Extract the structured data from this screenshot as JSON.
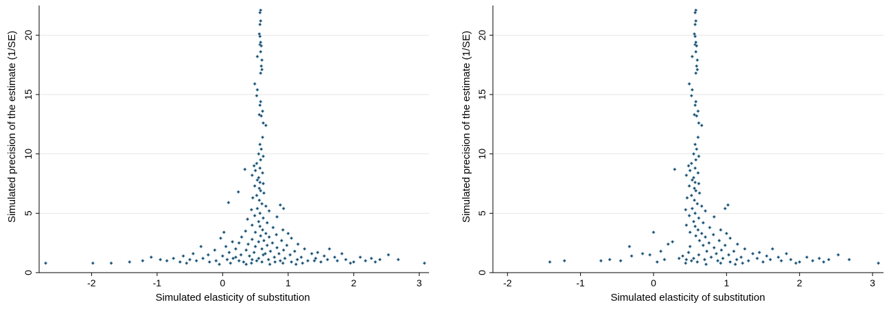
{
  "chart_data": [
    {
      "type": "scatter",
      "title": "",
      "xlabel": "Simulated elasticity of substitution",
      "ylabel": "Simulated precision of the estimate (1/SE)",
      "xlim": [
        -2.8,
        3.15
      ],
      "ylim": [
        0,
        22.5
      ],
      "xticks": [
        -2,
        -1,
        0,
        1,
        2,
        3
      ],
      "yticks": [
        0,
        5,
        10,
        15,
        20
      ],
      "grid": true,
      "legend": "none",
      "marker_color": "#1e4e6e",
      "points": [
        [
          0.58,
          22.1
        ],
        [
          0.57,
          21.9
        ],
        [
          0.58,
          21.2
        ],
        [
          0.57,
          20.9
        ],
        [
          0.56,
          20.1
        ],
        [
          0.57,
          19.9
        ],
        [
          0.58,
          19.4
        ],
        [
          0.57,
          19.2
        ],
        [
          0.59,
          19.1
        ],
        [
          0.58,
          18.6
        ],
        [
          0.53,
          18.2
        ],
        [
          0.6,
          17.9
        ],
        [
          0.59,
          17.4
        ],
        [
          0.6,
          17.1
        ],
        [
          0.58,
          16.8
        ],
        [
          0.49,
          15.9
        ],
        [
          0.53,
          15.4
        ],
        [
          0.52,
          14.9
        ],
        [
          0.58,
          14.4
        ],
        [
          0.57,
          14.1
        ],
        [
          0.61,
          13.6
        ],
        [
          0.56,
          13.3
        ],
        [
          0.59,
          13.2
        ],
        [
          0.62,
          12.6
        ],
        [
          0.66,
          12.4
        ],
        [
          0.61,
          11.4
        ],
        [
          0.57,
          10.8
        ],
        [
          0.59,
          10.4
        ],
        [
          0.55,
          10.0
        ],
        [
          0.62,
          9.8
        ],
        [
          0.58,
          9.5
        ],
        [
          0.52,
          9.2
        ],
        [
          0.48,
          9.0
        ],
        [
          0.57,
          8.8
        ],
        [
          0.5,
          8.6
        ],
        [
          0.34,
          8.7
        ],
        [
          0.61,
          8.4
        ],
        [
          0.45,
          8.2
        ],
        [
          0.55,
          8.0
        ],
        [
          0.53,
          7.8
        ],
        [
          0.57,
          7.6
        ],
        [
          0.62,
          7.5
        ],
        [
          0.49,
          7.3
        ],
        [
          0.56,
          7.1
        ],
        [
          0.58,
          6.9
        ],
        [
          0.63,
          6.7
        ],
        [
          0.24,
          6.8
        ],
        [
          0.52,
          6.5
        ],
        [
          0.46,
          6.3
        ],
        [
          0.56,
          6.1
        ],
        [
          0.09,
          5.9
        ],
        [
          0.6,
          5.8
        ],
        [
          0.66,
          5.6
        ],
        [
          0.53,
          5.4
        ],
        [
          0.44,
          5.3
        ],
        [
          0.71,
          5.2
        ],
        [
          0.57,
          5.0
        ],
        [
          0.88,
          5.7
        ],
        [
          0.93,
          5.4
        ],
        [
          0.49,
          4.8
        ],
        [
          0.62,
          4.6
        ],
        [
          0.83,
          4.7
        ],
        [
          0.38,
          4.5
        ],
        [
          0.55,
          4.3
        ],
        [
          0.68,
          4.2
        ],
        [
          0.45,
          4.0
        ],
        [
          0.57,
          3.9
        ],
        [
          0.77,
          3.8
        ],
        [
          0.61,
          3.6
        ],
        [
          0.92,
          3.6
        ],
        [
          0.35,
          3.5
        ],
        [
          0.5,
          3.4
        ],
        [
          0.66,
          3.3
        ],
        [
          1.0,
          3.3
        ],
        [
          0.02,
          3.4
        ],
        [
          0.82,
          3.2
        ],
        [
          0.58,
          3.1
        ],
        [
          0.29,
          3.0
        ],
        [
          0.71,
          3.0
        ],
        [
          1.05,
          2.9
        ],
        [
          -0.03,
          2.9
        ],
        [
          0.45,
          2.8
        ],
        [
          0.63,
          2.7
        ],
        [
          0.9,
          2.7
        ],
        [
          0.15,
          2.6
        ],
        [
          0.55,
          2.6
        ],
        [
          0.76,
          2.5
        ],
        [
          1.15,
          2.4
        ],
        [
          0.25,
          2.5
        ],
        [
          0.39,
          2.4
        ],
        [
          0.68,
          2.3
        ],
        [
          0.98,
          2.3
        ],
        [
          -0.33,
          2.2
        ],
        [
          0.05,
          2.2
        ],
        [
          0.5,
          2.2
        ],
        [
          0.83,
          2.1
        ],
        [
          1.25,
          2.0
        ],
        [
          0.2,
          2.0
        ],
        [
          0.6,
          2.0
        ],
        [
          0.93,
          1.9
        ],
        [
          1.63,
          2.0
        ],
        [
          -0.12,
          1.9
        ],
        [
          0.36,
          1.9
        ],
        [
          0.73,
          1.8
        ],
        [
          1.1,
          1.8
        ],
        [
          1.45,
          1.7
        ],
        [
          -0.45,
          1.6
        ],
        [
          0.1,
          1.7
        ],
        [
          0.48,
          1.7
        ],
        [
          0.86,
          1.6
        ],
        [
          1.36,
          1.6
        ],
        [
          1.82,
          1.6
        ],
        [
          -0.22,
          1.5
        ],
        [
          0.28,
          1.5
        ],
        [
          0.62,
          1.5
        ],
        [
          1.03,
          1.5
        ],
        [
          1.55,
          1.4
        ],
        [
          -0.6,
          1.4
        ],
        [
          0.0,
          1.4
        ],
        [
          0.41,
          1.4
        ],
        [
          0.79,
          1.3
        ],
        [
          1.2,
          1.3
        ],
        [
          1.71,
          1.3
        ],
        [
          2.1,
          1.3
        ],
        [
          -0.75,
          1.2
        ],
        [
          -0.3,
          1.2
        ],
        [
          0.16,
          1.2
        ],
        [
          0.55,
          1.2
        ],
        [
          0.95,
          1.2
        ],
        [
          1.42,
          1.2
        ],
        [
          2.27,
          1.2
        ],
        [
          2.53,
          1.5
        ],
        [
          -1.09,
          1.3
        ],
        [
          -0.95,
          1.1
        ],
        [
          -0.5,
          1.1
        ],
        [
          0.07,
          1.1
        ],
        [
          0.45,
          1.1
        ],
        [
          0.7,
          1.1
        ],
        [
          1.14,
          1.1
        ],
        [
          1.6,
          1.1
        ],
        [
          1.88,
          1.1
        ],
        [
          2.4,
          1.1
        ],
        [
          2.68,
          1.1
        ],
        [
          -0.85,
          1.0
        ],
        [
          -0.4,
          1.0
        ],
        [
          -0.1,
          1.0
        ],
        [
          0.25,
          1.0
        ],
        [
          0.52,
          1.0
        ],
        [
          0.88,
          1.0
        ],
        [
          1.3,
          1.0
        ],
        [
          1.75,
          1.0
        ],
        [
          2.18,
          1.0
        ],
        [
          -1.42,
          0.9
        ],
        [
          -1.22,
          1.0
        ],
        [
          -0.65,
          0.9
        ],
        [
          -0.2,
          0.9
        ],
        [
          0.32,
          0.9
        ],
        [
          0.6,
          0.9
        ],
        [
          1.05,
          0.9
        ],
        [
          1.5,
          0.9
        ],
        [
          2.0,
          0.9
        ],
        [
          2.33,
          0.9
        ],
        [
          -2.7,
          0.8
        ],
        [
          -1.98,
          0.8
        ],
        [
          -1.7,
          0.8
        ],
        [
          -0.55,
          0.8
        ],
        [
          0.12,
          0.8
        ],
        [
          0.44,
          0.8
        ],
        [
          0.92,
          0.8
        ],
        [
          1.22,
          0.8
        ],
        [
          1.95,
          0.8
        ],
        [
          3.08,
          0.8
        ],
        [
          0.36,
          0.7
        ],
        [
          0.72,
          0.7
        ],
        [
          1.12,
          0.7
        ],
        [
          -0.05,
          0.7
        ],
        [
          1.4,
          1.0
        ],
        [
          0.8,
          0.9
        ],
        [
          0.2,
          1.3
        ],
        [
          0.65,
          1.6
        ]
      ]
    },
    {
      "type": "scatter",
      "title": "",
      "xlabel": "Simulated elasticity of substitution",
      "ylabel": "Simulated precision of the estimate (1/SE)",
      "xlim": [
        -2.2,
        3.15
      ],
      "ylim": [
        0,
        22.5
      ],
      "xticks": [
        -2,
        -1,
        0,
        1,
        2,
        3
      ],
      "yticks": [
        0,
        5,
        10,
        15,
        20
      ],
      "grid": true,
      "legend": "none",
      "marker_color": "#1e4e6e",
      "points": [
        [
          0.58,
          22.1
        ],
        [
          0.57,
          21.9
        ],
        [
          0.58,
          21.2
        ],
        [
          0.57,
          20.9
        ],
        [
          0.56,
          20.1
        ],
        [
          0.57,
          19.9
        ],
        [
          0.58,
          19.4
        ],
        [
          0.57,
          19.2
        ],
        [
          0.59,
          19.1
        ],
        [
          0.58,
          18.6
        ],
        [
          0.53,
          18.2
        ],
        [
          0.6,
          17.9
        ],
        [
          0.59,
          17.4
        ],
        [
          0.6,
          17.1
        ],
        [
          0.58,
          16.8
        ],
        [
          0.49,
          15.9
        ],
        [
          0.53,
          15.4
        ],
        [
          0.52,
          14.9
        ],
        [
          0.58,
          14.4
        ],
        [
          0.57,
          14.1
        ],
        [
          0.61,
          13.6
        ],
        [
          0.56,
          13.3
        ],
        [
          0.59,
          13.2
        ],
        [
          0.62,
          12.6
        ],
        [
          0.66,
          12.4
        ],
        [
          0.61,
          11.4
        ],
        [
          0.57,
          10.8
        ],
        [
          0.59,
          10.4
        ],
        [
          0.55,
          10.0
        ],
        [
          0.62,
          9.8
        ],
        [
          0.58,
          9.5
        ],
        [
          0.52,
          9.2
        ],
        [
          0.48,
          9.0
        ],
        [
          0.57,
          8.8
        ],
        [
          0.5,
          8.6
        ],
        [
          0.29,
          8.7
        ],
        [
          0.61,
          8.4
        ],
        [
          0.45,
          8.2
        ],
        [
          0.55,
          8.0
        ],
        [
          0.53,
          7.8
        ],
        [
          0.57,
          7.6
        ],
        [
          0.62,
          7.5
        ],
        [
          0.49,
          7.3
        ],
        [
          0.56,
          7.1
        ],
        [
          0.58,
          6.9
        ],
        [
          0.63,
          6.7
        ],
        [
          0.52,
          6.5
        ],
        [
          0.46,
          6.3
        ],
        [
          0.56,
          6.1
        ],
        [
          0.6,
          5.8
        ],
        [
          0.66,
          5.6
        ],
        [
          0.53,
          5.4
        ],
        [
          0.44,
          5.3
        ],
        [
          0.71,
          5.2
        ],
        [
          0.57,
          5.0
        ],
        [
          1.02,
          5.7
        ],
        [
          0.98,
          5.4
        ],
        [
          0.49,
          4.8
        ],
        [
          0.62,
          4.6
        ],
        [
          0.83,
          4.7
        ],
        [
          0.55,
          4.3
        ],
        [
          0.68,
          4.2
        ],
        [
          0.45,
          4.0
        ],
        [
          0.57,
          3.9
        ],
        [
          0.77,
          3.8
        ],
        [
          0.61,
          3.6
        ],
        [
          0.92,
          3.6
        ],
        [
          0.5,
          3.4
        ],
        [
          0.66,
          3.3
        ],
        [
          1.0,
          3.3
        ],
        [
          0.0,
          3.4
        ],
        [
          0.82,
          3.2
        ],
        [
          0.58,
          3.1
        ],
        [
          0.71,
          3.0
        ],
        [
          1.05,
          2.9
        ],
        [
          0.63,
          2.7
        ],
        [
          0.9,
          2.7
        ],
        [
          0.26,
          2.6
        ],
        [
          0.76,
          2.5
        ],
        [
          1.15,
          2.4
        ],
        [
          0.68,
          2.3
        ],
        [
          0.98,
          2.3
        ],
        [
          -0.33,
          2.2
        ],
        [
          0.5,
          2.2
        ],
        [
          0.83,
          2.1
        ],
        [
          1.25,
          2.0
        ],
        [
          0.93,
          1.9
        ],
        [
          1.63,
          2.0
        ],
        [
          0.73,
          1.8
        ],
        [
          1.1,
          1.8
        ],
        [
          1.45,
          1.7
        ],
        [
          0.48,
          1.7
        ],
        [
          0.86,
          1.6
        ],
        [
          1.36,
          1.6
        ],
        [
          1.82,
          1.6
        ],
        [
          0.62,
          1.5
        ],
        [
          1.03,
          1.5
        ],
        [
          1.55,
          1.4
        ],
        [
          0.79,
          1.3
        ],
        [
          1.2,
          1.3
        ],
        [
          1.71,
          1.3
        ],
        [
          2.1,
          1.3
        ],
        [
          0.55,
          1.2
        ],
        [
          0.95,
          1.2
        ],
        [
          1.42,
          1.2
        ],
        [
          2.27,
          1.2
        ],
        [
          2.53,
          1.5
        ],
        [
          0.45,
          1.1
        ],
        [
          0.7,
          1.1
        ],
        [
          1.14,
          1.1
        ],
        [
          1.6,
          1.1
        ],
        [
          1.88,
          1.1
        ],
        [
          2.4,
          1.1
        ],
        [
          2.68,
          1.1
        ],
        [
          0.52,
          1.0
        ],
        [
          0.88,
          1.0
        ],
        [
          1.3,
          1.0
        ],
        [
          1.75,
          1.0
        ],
        [
          2.18,
          1.0
        ],
        [
          -1.42,
          0.9
        ],
        [
          -1.22,
          1.0
        ],
        [
          0.6,
          0.9
        ],
        [
          1.05,
          0.9
        ],
        [
          1.5,
          0.9
        ],
        [
          2.0,
          0.9
        ],
        [
          2.33,
          0.9
        ],
        [
          0.44,
          0.8
        ],
        [
          0.92,
          0.8
        ],
        [
          1.22,
          0.8
        ],
        [
          1.95,
          0.8
        ],
        [
          3.08,
          0.8
        ],
        [
          0.72,
          0.7
        ],
        [
          1.12,
          0.7
        ],
        [
          -0.72,
          1.0
        ],
        [
          -0.6,
          1.1
        ],
        [
          -0.45,
          1.0
        ],
        [
          -0.3,
          1.4
        ],
        [
          -0.15,
          1.6
        ],
        [
          0.1,
          1.8
        ],
        [
          0.2,
          2.4
        ],
        [
          0.35,
          1.2
        ],
        [
          0.05,
          0.9
        ],
        [
          -0.05,
          1.5
        ],
        [
          0.15,
          1.1
        ],
        [
          0.4,
          1.4
        ]
      ]
    }
  ]
}
